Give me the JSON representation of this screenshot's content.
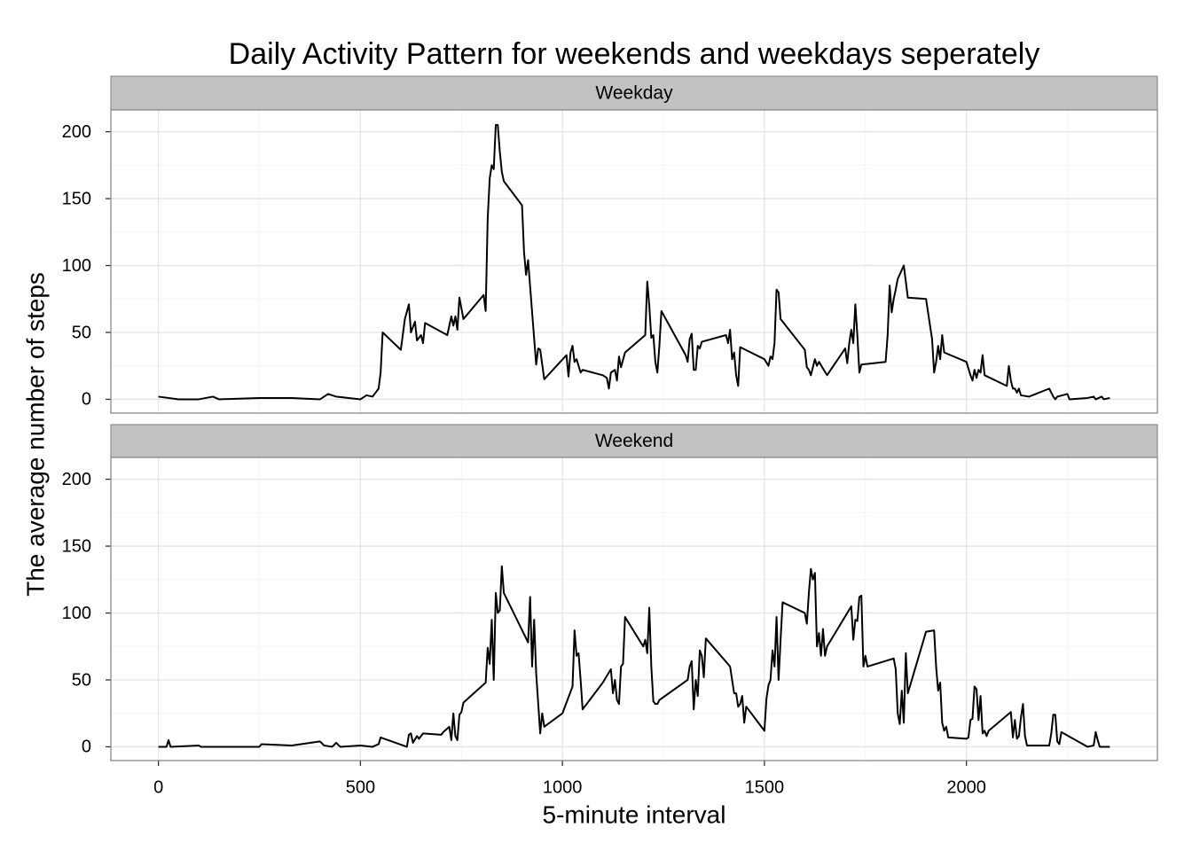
{
  "chart_data": [
    {
      "type": "line",
      "title": "Daily Activity Pattern for weekends and weekdays seperately",
      "ylabel": "The average number of steps",
      "strip": "Weekday",
      "color": "#000000",
      "xlim": [
        -117.75,
        2472.75
      ],
      "xticks": [
        0,
        500,
        1000,
        1500,
        2000
      ],
      "xminor": [
        250,
        750,
        1250,
        1750,
        2250
      ],
      "ylim": [
        -10.3,
        216.3
      ],
      "yticks": [
        0,
        50,
        100,
        150,
        200
      ],
      "yminor": [
        25,
        75,
        125,
        175
      ],
      "grid": true,
      "x": [
        0,
        50,
        100,
        135,
        150,
        250,
        330,
        400,
        420,
        440,
        500,
        515,
        530,
        545,
        550,
        555,
        600,
        610,
        620,
        625,
        635,
        640,
        650,
        655,
        660,
        715,
        725,
        730,
        735,
        740,
        745,
        755,
        805,
        810,
        815,
        820,
        825,
        830,
        835,
        840,
        845,
        850,
        855,
        900,
        905,
        910,
        915,
        925,
        935,
        940,
        945,
        955,
        1010,
        1015,
        1020,
        1025,
        1030,
        1035,
        1045,
        1050,
        1100,
        1110,
        1115,
        1120,
        1130,
        1135,
        1140,
        1145,
        1155,
        1205,
        1210,
        1215,
        1220,
        1225,
        1230,
        1235,
        1240,
        1245,
        1305,
        1310,
        1315,
        1320,
        1325,
        1330,
        1335,
        1340,
        1345,
        1405,
        1410,
        1415,
        1420,
        1425,
        1430,
        1435,
        1440,
        1500,
        1510,
        1515,
        1520,
        1525,
        1530,
        1535,
        1540,
        1600,
        1605,
        1610,
        1615,
        1620,
        1625,
        1630,
        1635,
        1655,
        1700,
        1705,
        1710,
        1715,
        1720,
        1725,
        1730,
        1735,
        1740,
        1800,
        1805,
        1810,
        1815,
        1820,
        1825,
        1830,
        1845,
        1855,
        1900,
        1910,
        1915,
        1920,
        1925,
        1930,
        1935,
        1940,
        1945,
        2000,
        2010,
        2015,
        2020,
        2025,
        2030,
        2035,
        2040,
        2045,
        2100,
        2105,
        2110,
        2115,
        2120,
        2125,
        2130,
        2135,
        2155,
        2205,
        2215,
        2220,
        2225,
        2250,
        2255,
        2300,
        2315,
        2320,
        2335,
        2340,
        2355
      ],
      "values": [
        2,
        0,
        0,
        2,
        0,
        1,
        1,
        0,
        4,
        2,
        0,
        3,
        2,
        8,
        20,
        50,
        37,
        60,
        71,
        50,
        58,
        44,
        48,
        42,
        57,
        48,
        62,
        55,
        62,
        52,
        76,
        60,
        78,
        66,
        135,
        165,
        175,
        172,
        205,
        205,
        185,
        170,
        163,
        145,
        110,
        93,
        104,
        65,
        26,
        38,
        37,
        15,
        33,
        17,
        35,
        40,
        28,
        30,
        20,
        22,
        18,
        16,
        8,
        20,
        22,
        14,
        32,
        24,
        35,
        48,
        88,
        70,
        46,
        48,
        28,
        20,
        40,
        66,
        33,
        28,
        45,
        49,
        22,
        22,
        40,
        38,
        43,
        48,
        42,
        52,
        30,
        35,
        18,
        10,
        39,
        30,
        25,
        32,
        30,
        42,
        82,
        80,
        60,
        37,
        24,
        22,
        18,
        24,
        30,
        25,
        28,
        18,
        38,
        27,
        42,
        52,
        42,
        71,
        48,
        20,
        26,
        28,
        48,
        85,
        65,
        75,
        82,
        90,
        100,
        76,
        75,
        55,
        45,
        20,
        28,
        40,
        30,
        48,
        35,
        28,
        18,
        14,
        22,
        16,
        22,
        20,
        33,
        18,
        10,
        25,
        14,
        8,
        8,
        5,
        8,
        3,
        2,
        8,
        2,
        0,
        2,
        4,
        0,
        1,
        2,
        0,
        2,
        0,
        1
      ]
    },
    {
      "type": "line",
      "xlabel": "5-minute interval",
      "strip": "Weekend",
      "color": "#000000",
      "xlim": [
        -117.75,
        2472.75
      ],
      "xticks": [
        0,
        500,
        1000,
        1500,
        2000
      ],
      "xminor": [
        250,
        750,
        1250,
        1750,
        2250
      ],
      "ylim": [
        -10.3,
        216.3
      ],
      "yticks": [
        0,
        50,
        100,
        150,
        200
      ],
      "yminor": [
        25,
        75,
        125,
        175
      ],
      "grid": true,
      "x": [
        0,
        20,
        25,
        30,
        100,
        105,
        250,
        255,
        330,
        400,
        410,
        430,
        440,
        450,
        500,
        530,
        545,
        550,
        615,
        620,
        625,
        630,
        640,
        645,
        655,
        700,
        705,
        720,
        725,
        730,
        735,
        740,
        745,
        750,
        755,
        810,
        815,
        820,
        825,
        830,
        835,
        840,
        845,
        850,
        855,
        915,
        920,
        925,
        930,
        935,
        945,
        950,
        955,
        1000,
        1025,
        1030,
        1035,
        1040,
        1045,
        1050,
        1055,
        1100,
        1120,
        1125,
        1130,
        1135,
        1140,
        1145,
        1150,
        1155,
        1200,
        1205,
        1210,
        1215,
        1220,
        1225,
        1230,
        1235,
        1240,
        1310,
        1315,
        1320,
        1325,
        1330,
        1335,
        1340,
        1345,
        1350,
        1355,
        1415,
        1420,
        1425,
        1430,
        1435,
        1440,
        1445,
        1450,
        1455,
        1500,
        1505,
        1510,
        1515,
        1520,
        1525,
        1530,
        1535,
        1540,
        1545,
        1600,
        1605,
        1610,
        1615,
        1620,
        1625,
        1630,
        1635,
        1640,
        1645,
        1650,
        1655,
        1715,
        1720,
        1725,
        1730,
        1735,
        1740,
        1745,
        1750,
        1755,
        1820,
        1825,
        1830,
        1835,
        1840,
        1845,
        1850,
        1855,
        1900,
        1920,
        1925,
        1930,
        1935,
        1940,
        1945,
        1950,
        1955,
        2000,
        2005,
        2010,
        2015,
        2020,
        2025,
        2030,
        2035,
        2040,
        2045,
        2050,
        2055,
        2110,
        2115,
        2120,
        2125,
        2130,
        2135,
        2140,
        2145,
        2150,
        2200,
        2205,
        2210,
        2215,
        2220,
        2225,
        2230,
        2235,
        2300,
        2315,
        2320,
        2325,
        2330,
        2355
      ],
      "values": [
        0,
        0,
        5,
        0,
        1,
        0,
        0,
        2,
        1,
        4,
        1,
        0,
        3,
        0,
        1,
        0,
        2,
        7,
        0,
        9,
        10,
        3,
        8,
        6,
        10,
        9,
        11,
        15,
        5,
        25,
        8,
        5,
        24,
        26,
        33,
        48,
        74,
        62,
        95,
        50,
        115,
        100,
        102,
        135,
        115,
        78,
        112,
        60,
        95,
        55,
        10,
        25,
        15,
        25,
        45,
        87,
        68,
        70,
        50,
        28,
        30,
        48,
        58,
        40,
        50,
        35,
        32,
        60,
        62,
        97,
        75,
        80,
        70,
        104,
        60,
        34,
        32,
        32,
        35,
        50,
        60,
        64,
        28,
        50,
        38,
        72,
        68,
        52,
        81,
        60,
        50,
        40,
        40,
        30,
        32,
        38,
        18,
        30,
        12,
        36,
        46,
        50,
        72,
        60,
        97,
        50,
        80,
        108,
        100,
        92,
        115,
        133,
        125,
        130,
        75,
        85,
        68,
        88,
        68,
        75,
        105,
        80,
        95,
        94,
        112,
        113,
        60,
        68,
        60,
        66,
        58,
        25,
        17,
        42,
        18,
        70,
        40,
        86,
        87,
        60,
        42,
        48,
        18,
        12,
        15,
        7,
        6,
        7,
        20,
        21,
        45,
        43,
        20,
        38,
        10,
        12,
        8,
        12,
        26,
        7,
        20,
        6,
        8,
        22,
        32,
        8,
        1,
        1,
        1,
        10,
        24,
        24,
        4,
        2,
        11,
        0,
        1,
        11,
        5,
        0,
        0
      ]
    }
  ]
}
